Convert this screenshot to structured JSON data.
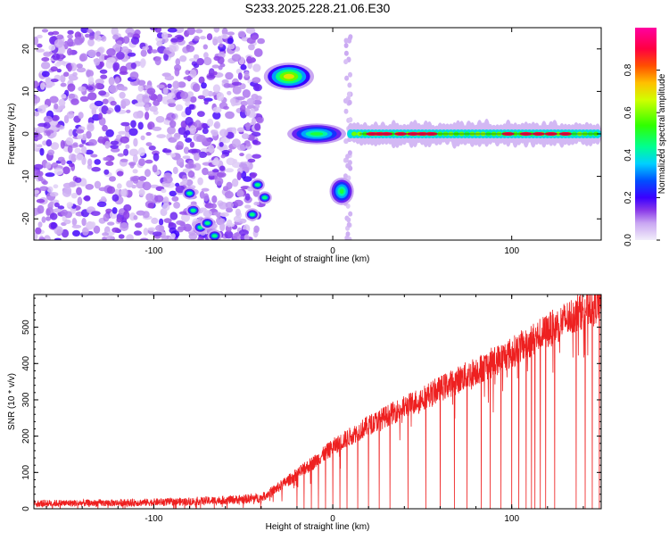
{
  "chart_data": [
    {
      "type": "heatmap",
      "title": "S233.2025.228.21.06.E30",
      "xlabel": "Height of straight line (km)",
      "ylabel": "Frequency (Hz)",
      "xlim": [
        -167,
        150
      ],
      "ylim": [
        -25,
        25
      ],
      "xticks": [
        -100,
        0,
        100
      ],
      "yticks": [
        -20,
        -10,
        0,
        10,
        20
      ],
      "colorbar": {
        "label": "Normalized spectral amplitude",
        "range": [
          0,
          1
        ],
        "ticks": [
          "0.0",
          "0.2",
          "0.4",
          "0.6",
          "0.8"
        ],
        "tick_values": [
          0.0,
          0.2,
          0.4,
          0.6,
          0.8
        ],
        "colors": [
          "#e8e0f8",
          "#b48cf0",
          "#7a2ae6",
          "#3a00ff",
          "#0040ff",
          "#00c8ff",
          "#00ff90",
          "#40ff00",
          "#c8ff00",
          "#ffc800",
          "#ff5000",
          "#ff0040",
          "#ff00a0"
        ]
      },
      "features": [
        {
          "name": "noise field",
          "x_range": [
            -167,
            -40
          ],
          "y_range": [
            -25,
            25
          ],
          "amplitude": 0.15
        },
        {
          "name": "upper blob",
          "x_range": [
            -32,
            -17
          ],
          "y_range": [
            12,
            15
          ],
          "amplitude": 0.7
        },
        {
          "name": "center blob",
          "x_range": [
            -18,
            0
          ],
          "y_range": [
            -1,
            1
          ],
          "amplitude": 0.5
        },
        {
          "name": "lower blob",
          "x_range": [
            2,
            8
          ],
          "y_range": [
            -15,
            -12
          ],
          "amplitude": 0.5
        },
        {
          "name": "zero-frequency band",
          "x_range": [
            10,
            148
          ],
          "y_range": [
            -1,
            1
          ],
          "amplitude": 0.9
        },
        {
          "name": "lower-left cluster",
          "x_range": [
            -82,
            -35
          ],
          "y_range": [
            -24,
            -10
          ],
          "amplitude": 0.45
        }
      ]
    },
    {
      "type": "line",
      "xlabel": "Height of straight line (km)",
      "ylabel": "SNR (10 * v/v)",
      "xlim": [
        -167,
        150
      ],
      "ylim": [
        0,
        590
      ],
      "xticks": [
        -100,
        0,
        100
      ],
      "yticks": [
        0,
        100,
        200,
        300,
        400,
        500
      ],
      "color": "#ee2020",
      "series": [
        {
          "name": "SNR",
          "x": [
            -167,
            -120,
            -80,
            -55,
            -40,
            -30,
            -20,
            -10,
            0,
            10,
            20,
            40,
            60,
            80,
            100,
            120,
            140,
            150
          ],
          "values": [
            15,
            16,
            20,
            25,
            30,
            60,
            95,
            130,
            170,
            200,
            230,
            280,
            330,
            380,
            430,
            490,
            550,
            570
          ]
        }
      ],
      "dips_to_zero_at_x": [
        -20,
        -16,
        -12,
        -8,
        -4,
        0,
        4,
        8,
        14,
        20,
        26,
        32,
        42,
        52,
        60,
        68,
        75,
        83,
        88,
        94,
        100,
        104,
        108,
        111,
        113,
        116,
        119,
        124,
        136,
        141,
        145,
        149
      ]
    }
  ]
}
